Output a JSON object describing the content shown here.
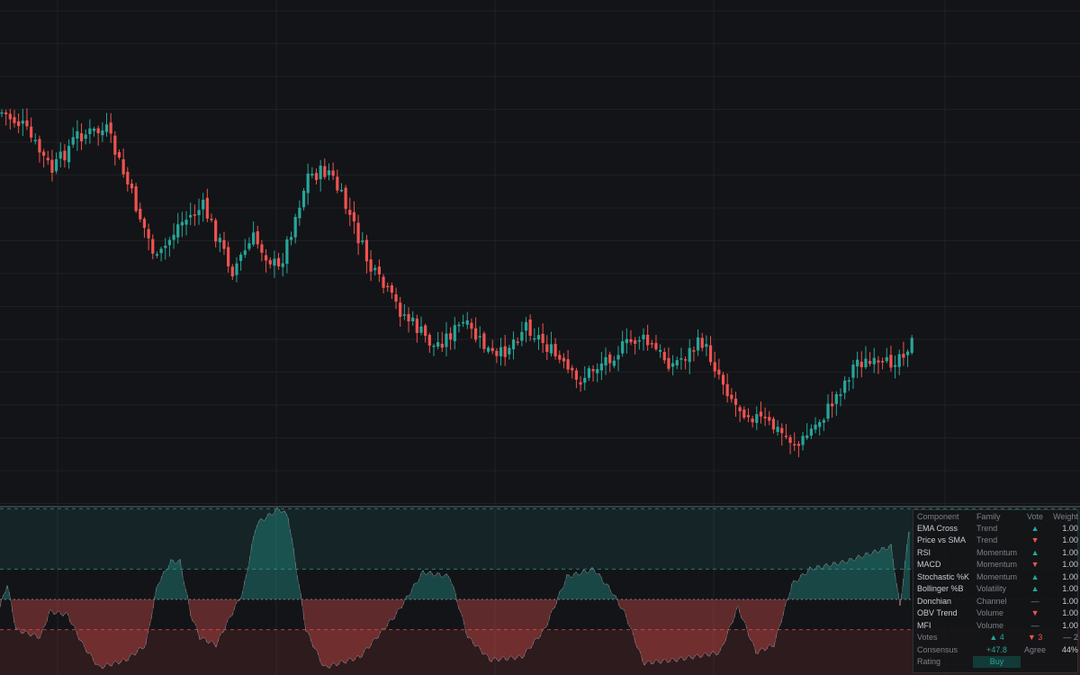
{
  "chart_data": [
    {
      "type": "candlestick",
      "title": "",
      "grid": true,
      "x_count": 170,
      "ohlc": []
    },
    {
      "type": "area",
      "title": "",
      "grid": true,
      "ylim": [
        -100,
        100
      ],
      "reference_lines": [
        60,
        20,
        0,
        -20,
        -60
      ],
      "positive_color": "#26a69a",
      "negative_color": "#ef5350",
      "series": []
    }
  ],
  "colors": {
    "background": "#131417",
    "grid": "#1e2025",
    "up": "#26a69a",
    "down": "#ef5350",
    "muted": "#7c8089"
  },
  "table": {
    "headers": [
      "Component",
      "Family",
      "Vote",
      "Weight"
    ],
    "rows": [
      {
        "component": "EMA Cross",
        "family": "Trend",
        "vote": "▲",
        "vote_type": "up",
        "weight": "1.00"
      },
      {
        "component": "Price vs SMA",
        "family": "Trend",
        "vote": "▼",
        "vote_type": "down",
        "weight": "1.00"
      },
      {
        "component": "RSI",
        "family": "Momentum",
        "vote": "▲",
        "vote_type": "up",
        "weight": "1.00"
      },
      {
        "component": "MACD",
        "family": "Momentum",
        "vote": "▼",
        "vote_type": "down",
        "weight": "1.00"
      },
      {
        "component": "Stochastic %K",
        "family": "Momentum",
        "vote": "▲",
        "vote_type": "up",
        "weight": "1.00"
      },
      {
        "component": "Bollinger %B",
        "family": "Volatility",
        "vote": "▲",
        "vote_type": "up",
        "weight": "1.00"
      },
      {
        "component": "Donchian",
        "family": "Channel",
        "vote": "—",
        "vote_type": "neutral",
        "weight": "1.00"
      },
      {
        "component": "OBV Trend",
        "family": "Volume",
        "vote": "▼",
        "vote_type": "down",
        "weight": "1.00"
      },
      {
        "component": "MFI",
        "family": "Volume",
        "vote": "—",
        "vote_type": "neutral",
        "weight": "1.00"
      }
    ],
    "votes_label": "Votes",
    "votes_up": "▲ 4",
    "votes_down": "▼ 3",
    "votes_neutral": "— 2",
    "consensus_label": "Consensus",
    "consensus_value": "+47.8",
    "agree_label": "Agree",
    "agree_value": "44%",
    "rating_label": "Rating",
    "rating_value": "Buy"
  }
}
